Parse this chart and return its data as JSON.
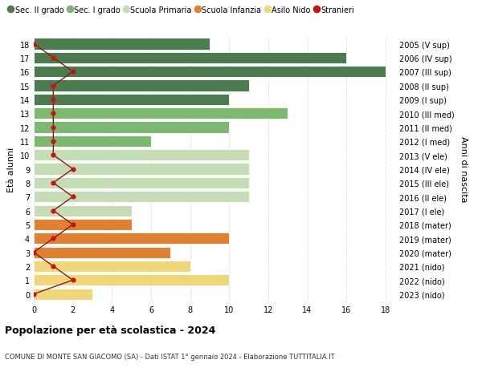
{
  "ages": [
    18,
    17,
    16,
    15,
    14,
    13,
    12,
    11,
    10,
    9,
    8,
    7,
    6,
    5,
    4,
    3,
    2,
    1,
    0
  ],
  "years_labels": [
    "2005 (V sup)",
    "2006 (IV sup)",
    "2007 (III sup)",
    "2008 (II sup)",
    "2009 (I sup)",
    "2010 (III med)",
    "2011 (II med)",
    "2012 (I med)",
    "2013 (V ele)",
    "2014 (IV ele)",
    "2015 (III ele)",
    "2016 (II ele)",
    "2017 (I ele)",
    "2018 (mater)",
    "2019 (mater)",
    "2020 (mater)",
    "2021 (nido)",
    "2022 (nido)",
    "2023 (nido)"
  ],
  "bar_values": [
    9,
    16,
    18,
    11,
    10,
    13,
    10,
    6,
    11,
    11,
    11,
    11,
    5,
    5,
    10,
    7,
    8,
    10,
    3
  ],
  "bar_colors": [
    "#4a7c4e",
    "#4a7c4e",
    "#4a7c4e",
    "#4a7c4e",
    "#4a7c4e",
    "#7db870",
    "#7db870",
    "#7db870",
    "#c5ddb5",
    "#c5ddb5",
    "#c5ddb5",
    "#c5ddb5",
    "#c5ddb5",
    "#e08030",
    "#e08030",
    "#e08030",
    "#f0d878",
    "#f0d878",
    "#f0d878"
  ],
  "stranieri_values": [
    0,
    1,
    2,
    1,
    1,
    1,
    1,
    1,
    1,
    2,
    1,
    2,
    1,
    2,
    1,
    0,
    1,
    2,
    0
  ],
  "legend_labels": [
    "Sec. II grado",
    "Sec. I grado",
    "Scuola Primaria",
    "Scuola Infanzia",
    "Asilo Nido",
    "Stranieri"
  ],
  "legend_colors": [
    "#4a7c4e",
    "#7db870",
    "#c5ddb5",
    "#e08030",
    "#f0d878",
    "#cc1111"
  ],
  "ylabel_left": "Età alunni",
  "ylabel_right": "Anni di nascita",
  "title": "Popolazione per età scolastica - 2024",
  "subtitle": "COMUNE DI MONTE SAN GIACOMO (SA) - Dati ISTAT 1° gennaio 2024 - Elaborazione TUTTITALIA.IT",
  "xticks": [
    0,
    2,
    4,
    6,
    8,
    10,
    12,
    14,
    16,
    18
  ],
  "xlim": [
    0,
    18.5
  ],
  "background_color": "#ffffff",
  "grid_color": "#dddddd",
  "bar_height": 0.82
}
